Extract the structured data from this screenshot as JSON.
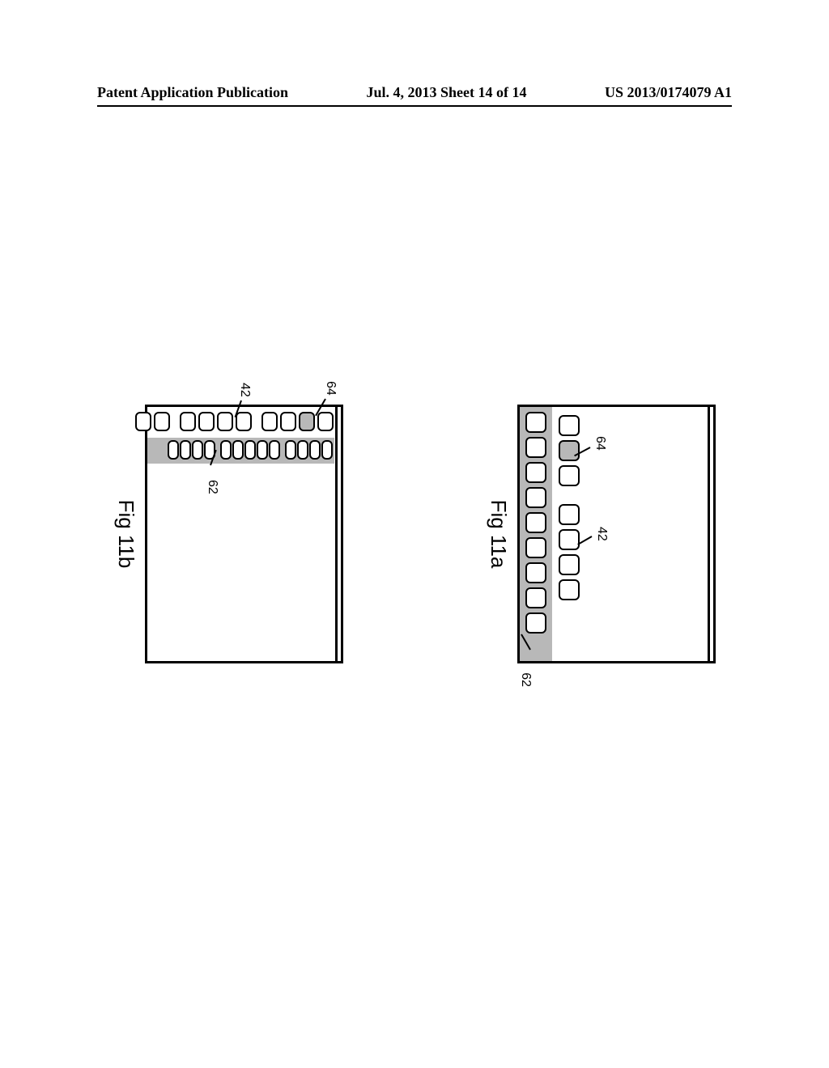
{
  "header": {
    "left": "Patent Application Publication",
    "mid": "Jul. 4, 2013   Sheet 14 of 14",
    "right": "US 2013/0174079 A1"
  },
  "fig11a": {
    "caption": "Fig 11a",
    "ref_42": "42",
    "ref_62": "62",
    "ref_64": "64",
    "top_row_count": 7,
    "dock_icon_count": 9,
    "selected_top_index": 1
  },
  "fig11b": {
    "caption": "Fig 11b",
    "ref_42": "42",
    "ref_62": "62",
    "ref_64": "64",
    "left_col_count": 10,
    "dock_col_count": 13,
    "selected_left_index": 1
  },
  "colors": {
    "line": "#000000",
    "fill_band": "#b8b8b8",
    "fill_selected": "#b8b8b8",
    "bg": "#ffffff"
  }
}
